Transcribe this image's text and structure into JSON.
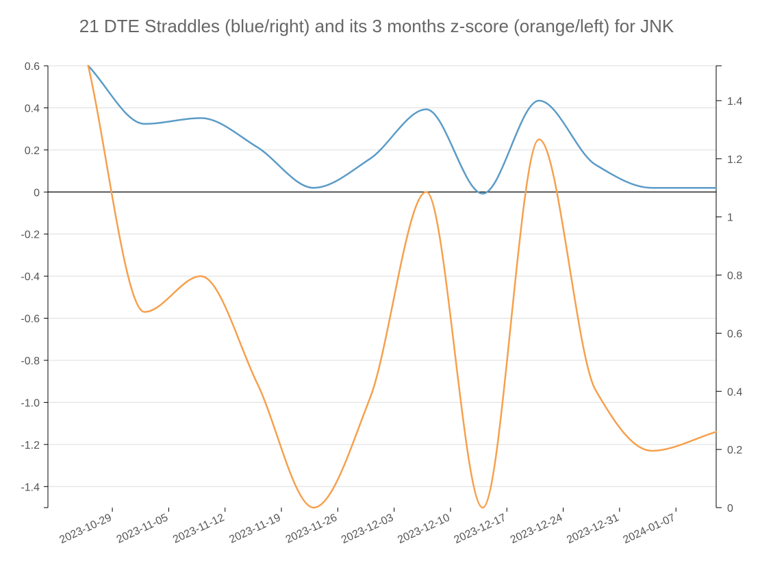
{
  "chart_data": {
    "type": "line",
    "title": "21 DTE Straddles (blue/right) and its 3 months z-score (orange/left)  for JNK",
    "xlabel": "",
    "ylabel_left": "",
    "ylabel_right": "",
    "x_ticks": [
      "2023-10-29",
      "2023-11-05",
      "2023-11-12",
      "2023-11-19",
      "2023-11-26",
      "2023-12-03",
      "2023-12-10",
      "2023-12-17",
      "2023-12-24",
      "2023-12-31",
      "2024-01-07"
    ],
    "x_range": [
      "2023-10-21",
      "2024-01-12"
    ],
    "y_left": {
      "range": [
        -1.5,
        0.6
      ],
      "ticks": [
        0.6,
        0.4,
        0.2,
        0,
        -0.2,
        -0.4,
        -0.6,
        -0.8,
        -1.0,
        -1.2,
        -1.4
      ],
      "tick_labels": [
        "0.6",
        "0.4",
        "0.2",
        "0",
        "-0.2",
        "-0.4",
        "-0.6",
        "-0.8",
        "-1.0",
        "-1.2",
        "-1.4"
      ]
    },
    "y_right": {
      "range": [
        0,
        1.52
      ],
      "ticks": [
        1.4,
        1.2,
        1,
        0.8,
        0.6,
        0.4,
        0.2,
        0
      ],
      "tick_labels": [
        "1.4",
        "1.2",
        "1",
        "0.8",
        "0.6",
        "0.4",
        "0.2",
        "0"
      ]
    },
    "zero_line": 0,
    "grid": "horizontal",
    "series": [
      {
        "name": "21 DTE Straddles",
        "color": "#5b9bc7",
        "axis": "right",
        "points": [
          {
            "x": "2023-10-26",
            "y": 1.52
          },
          {
            "x": "2023-11-02",
            "y": 1.32
          },
          {
            "x": "2023-11-09",
            "y": 1.34
          },
          {
            "x": "2023-11-16",
            "y": 1.24
          },
          {
            "x": "2023-11-23",
            "y": 1.1
          },
          {
            "x": "2023-11-30",
            "y": 1.2
          },
          {
            "x": "2023-12-07",
            "y": 1.37
          },
          {
            "x": "2023-12-14",
            "y": 1.08
          },
          {
            "x": "2023-12-21",
            "y": 1.4
          },
          {
            "x": "2023-12-28",
            "y": 1.18
          },
          {
            "x": "2024-01-04",
            "y": 1.1
          },
          {
            "x": "2024-01-12",
            "y": 1.1
          }
        ]
      },
      {
        "name": "3 months z-score",
        "color": "#f6a04d",
        "axis": "left",
        "points": [
          {
            "x": "2023-10-26",
            "y": 0.6
          },
          {
            "x": "2023-11-02",
            "y": -0.57
          },
          {
            "x": "2023-11-09",
            "y": -0.4
          },
          {
            "x": "2023-11-16",
            "y": -0.91
          },
          {
            "x": "2023-11-23",
            "y": -1.5
          },
          {
            "x": "2023-11-30",
            "y": -0.98
          },
          {
            "x": "2023-12-07",
            "y": 0.0
          },
          {
            "x": "2023-12-14",
            "y": -1.5
          },
          {
            "x": "2023-12-21",
            "y": 0.25
          },
          {
            "x": "2023-12-28",
            "y": -0.94
          },
          {
            "x": "2024-01-04",
            "y": -1.23
          },
          {
            "x": "2024-01-12",
            "y": -1.14
          }
        ]
      }
    ]
  }
}
